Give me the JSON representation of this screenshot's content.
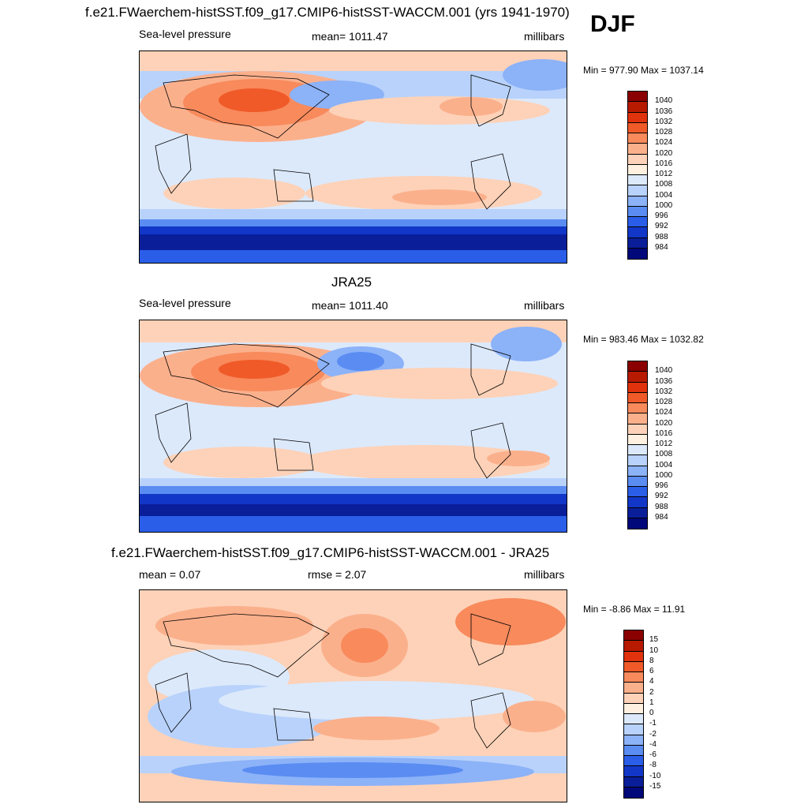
{
  "season": "DJF",
  "panels": [
    {
      "title": "f.e21.FWaerchem-histSST.f09_g17.CMIP6-histSST-WACCM.001 (yrs 1941-1970)",
      "left_label": "Sea-level pressure",
      "center_label": "mean= 1011.47",
      "right_label": "millibars",
      "minmax": "Min = 977.90 Max = 1037.14",
      "colorbar": {
        "colors": [
          "#8b0000",
          "#b81a00",
          "#e0320c",
          "#f05a28",
          "#f88a5c",
          "#fbb08c",
          "#fdd2b8",
          "#fff0e0",
          "#dce9fb",
          "#b8d2fb",
          "#8cb2f8",
          "#5a8cf2",
          "#2a5ee8",
          "#1237c8",
          "#0a1e9a",
          "#00087a"
        ],
        "labels": [
          "1040",
          "1036",
          "1032",
          "1028",
          "1024",
          "1020",
          "1016",
          "1012",
          "1008",
          "1004",
          "1000",
          "996",
          "992",
          "988",
          "984"
        ]
      }
    },
    {
      "title": "JRA25",
      "left_label": "Sea-level pressure",
      "center_label": "mean= 1011.40",
      "right_label": "millibars",
      "minmax": "Min = 983.46 Max = 1032.82",
      "colorbar": {
        "colors": [
          "#8b0000",
          "#b81a00",
          "#e0320c",
          "#f05a28",
          "#f88a5c",
          "#fbb08c",
          "#fdd2b8",
          "#fff0e0",
          "#dce9fb",
          "#b8d2fb",
          "#8cb2f8",
          "#5a8cf2",
          "#2a5ee8",
          "#1237c8",
          "#0a1e9a",
          "#00087a"
        ],
        "labels": [
          "1040",
          "1036",
          "1032",
          "1028",
          "1024",
          "1020",
          "1016",
          "1012",
          "1008",
          "1004",
          "1000",
          "996",
          "992",
          "988",
          "984"
        ]
      }
    },
    {
      "title": "f.e21.FWaerchem-histSST.f09_g17.CMIP6-histSST-WACCM.001 - JRA25",
      "left_label": "mean =   0.07",
      "center_label": "rmse =   2.07",
      "right_label": "millibars",
      "minmax": "Min =  -8.86 Max =  11.91",
      "colorbar": {
        "colors": [
          "#8b0000",
          "#b81a00",
          "#e0320c",
          "#f05a28",
          "#f88a5c",
          "#fbb08c",
          "#fdd2b8",
          "#fff0e0",
          "#dce9fb",
          "#b8d2fb",
          "#8cb2f8",
          "#5a8cf2",
          "#2a5ee8",
          "#1237c8",
          "#0a1e9a",
          "#00087a"
        ],
        "labels": [
          "15",
          "10",
          "8",
          "6",
          "4",
          "2",
          "1",
          "0",
          "-1",
          "-2",
          "-4",
          "-6",
          "-8",
          "-10",
          "-15"
        ]
      }
    }
  ]
}
